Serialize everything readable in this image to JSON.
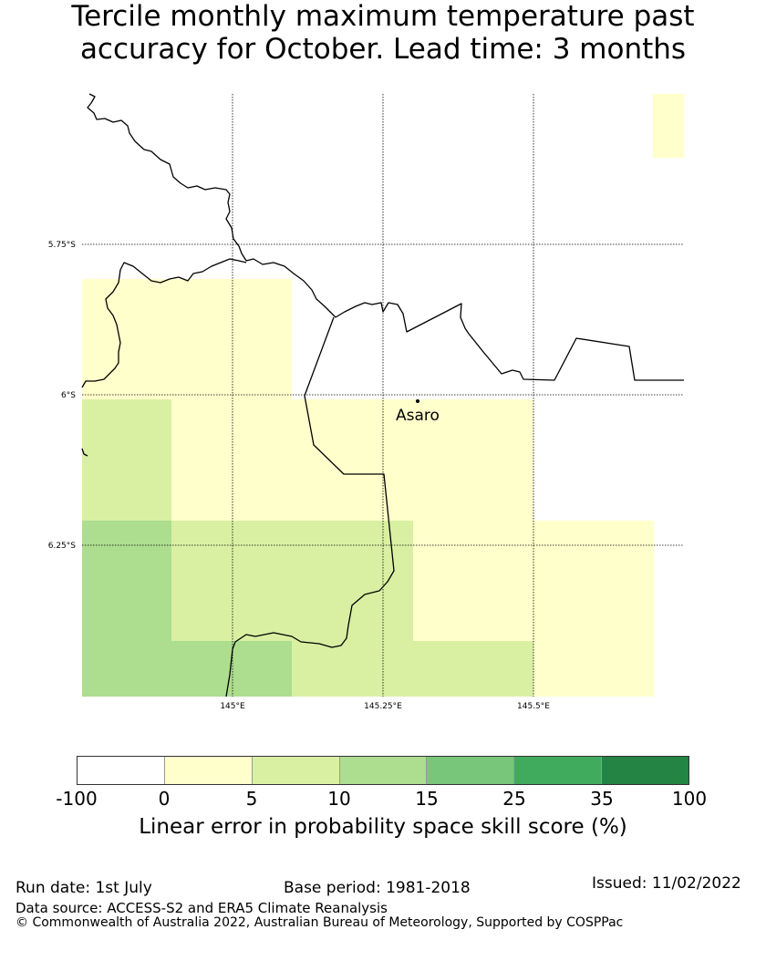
{
  "title": {
    "line1": "Tercile monthly maximum temperature past",
    "line2": "accuracy for October. Lead time: 3 months"
  },
  "map": {
    "lat_labels": [
      "5.75°S",
      "6°S",
      "6.25°S"
    ],
    "lon_labels": [
      "145°E",
      "145.25°E",
      "145.5°E"
    ],
    "place": "Asaro"
  },
  "colorbar": {
    "ticks": [
      "-100",
      "0",
      "5",
      "10",
      "15",
      "25",
      "35",
      "100"
    ],
    "colors": [
      "#ffffff",
      "#ffffcc",
      "#d9f0a3",
      "#addd8e",
      "#78c679",
      "#41ab5d",
      "#238443"
    ],
    "label": "Linear error in probability space skill score (%)"
  },
  "footer": {
    "run_date": "Run date: 1st July",
    "base_period": "Base period: 1981-2018",
    "issued": "Issued: 11/02/2022",
    "data_source": "Data source: ACCESS-S2 and ERA5 Climate Reanalysis",
    "copyright": "© Commonwealth of Australia 2022, Australian Bureau of Meteorology, Supported by COSPPac"
  }
}
